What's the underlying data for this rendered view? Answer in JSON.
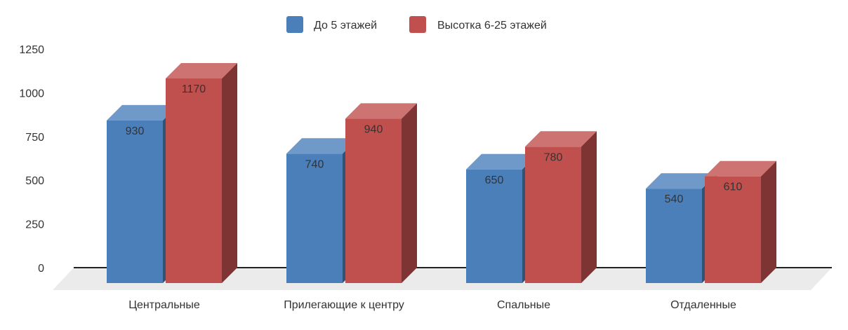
{
  "chart_data": {
    "type": "bar",
    "categories": [
      "Центральные",
      "Прилегающие к центру",
      "Спальные",
      "Отдаленные"
    ],
    "series": [
      {
        "name": "До 5 этажей",
        "values": [
          930,
          740,
          650,
          540
        ],
        "color": "#4a7fba"
      },
      {
        "name": "Высотка 6-25 этажей",
        "values": [
          1170,
          940,
          780,
          610
        ],
        "color": "#c0504d"
      }
    ],
    "yticks": [
      "0",
      "250",
      "500",
      "750",
      "1000",
      "1250"
    ],
    "ylim": [
      0,
      1250
    ],
    "title": "",
    "xlabel": "",
    "ylabel": "",
    "legend_position": "top",
    "grid": false,
    "style": "3d"
  }
}
